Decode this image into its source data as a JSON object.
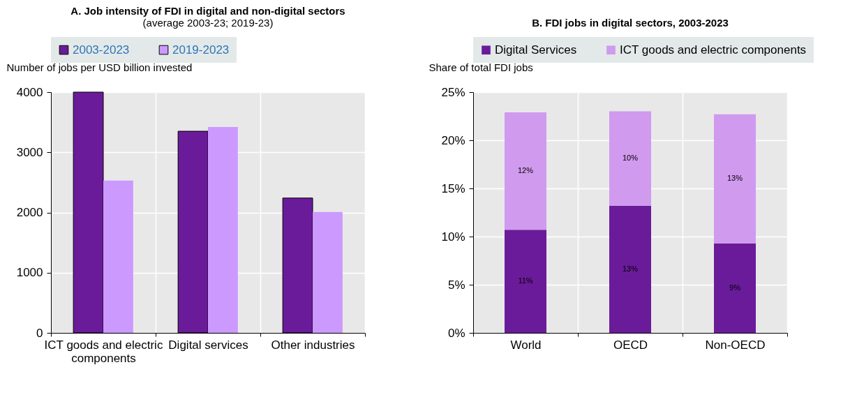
{
  "chart_data": [
    {
      "type": "bar",
      "title": "A. Job intensity of FDI in digital and non-digital sectors",
      "subtitle": "(average 2003-23; 2019-23)",
      "ylabel": "Number of jobs per USD billion invested",
      "categories": [
        "ICT goods and electric components",
        "Digital services",
        "Other industries"
      ],
      "series": [
        {
          "name": "2003-2023",
          "color": "#6a1b9a",
          "values": [
            4000,
            3350,
            2240
          ]
        },
        {
          "name": "2019-2023",
          "color": "#cc99ff",
          "values": [
            2530,
            3420,
            2010
          ]
        }
      ],
      "ylim": [
        0,
        4000
      ],
      "yticks": [
        0,
        1000,
        2000,
        3000,
        4000
      ],
      "grid": true,
      "legend": "top"
    },
    {
      "type": "bar",
      "stacked": true,
      "title": "B. FDI jobs in digital sectors, 2003-2023",
      "ylabel": "Share of total FDI jobs",
      "categories": [
        "World",
        "OECD",
        "Non-OECD"
      ],
      "series": [
        {
          "name": "Digital Services",
          "color": "#6a1b9a",
          "values": [
            10.7,
            13.2,
            9.3
          ],
          "value_labels": [
            "11%",
            "13%",
            "9%"
          ]
        },
        {
          "name": "ICT goods and electric components",
          "color": "#d09aee",
          "values": [
            12.2,
            9.8,
            13.4
          ],
          "value_labels": [
            "12%",
            "10%",
            "13%"
          ]
        }
      ],
      "ylim": [
        0,
        25
      ],
      "yticks": [
        {
          "value": 0,
          "label": "0%"
        },
        {
          "value": 5,
          "label": "5%"
        },
        {
          "value": 10,
          "label": "10%"
        },
        {
          "value": 15,
          "label": "15%"
        },
        {
          "value": 20,
          "label": "20%"
        },
        {
          "value": 25,
          "label": "25%"
        }
      ],
      "grid": true,
      "legend": "top"
    }
  ]
}
